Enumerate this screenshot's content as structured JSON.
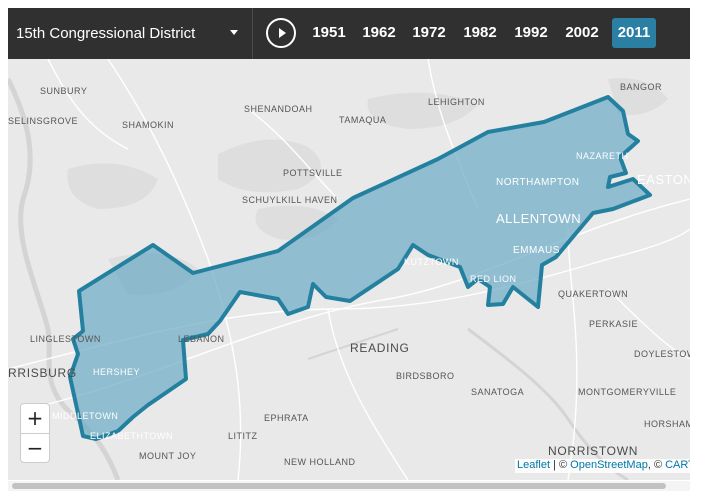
{
  "toolbar": {
    "district_label": "15th Congressional District",
    "years": [
      "1951",
      "1962",
      "1972",
      "1982",
      "1992",
      "2002",
      "2011"
    ],
    "active_year": "2011"
  },
  "colors": {
    "toolbar_bg": "#303030",
    "active_year_bg": "#2a7fa3",
    "district_fill": "#6aaac4",
    "district_stroke": "#24809f",
    "map_bg": "#e9e9e9"
  },
  "map": {
    "places": {
      "sunbury": "SUNBURY",
      "selinsgrove": "SELINSGROVE",
      "shenandoah": "SHENANDOAH",
      "lehighton": "LEHIGHTON",
      "bangor": "BANGOR",
      "shamokin": "SHAMOKIN",
      "tamaqua": "TAMAQUA",
      "nazareth": "NAZARETH",
      "pottsville": "POTTSVILLE",
      "northampton": "NORTHAMPTON",
      "easton": "EASTON",
      "schuylkill_haven": "SCHUYLKILL HAVEN",
      "allentown": "ALLENTOWN",
      "emmaus": "EMMAUS",
      "kutztown": "KUTZTOWN",
      "red_lion": "RED LION",
      "quakertown": "QUAKERTOWN",
      "perkasie": "PERKASIE",
      "linglestown": "LINGLESTOWN",
      "lebanon": "LEBANON",
      "reading": "READING",
      "doylestown": "DOYLESTOWN",
      "harrisburg": "RRISBURG",
      "hershey": "HERSHEY",
      "birdsboro": "BIRDSBORO",
      "sanatoga": "SANATOGA",
      "montgomeryville": "MONTGOMERYVILLE",
      "middletown": "MIDDLETOWN",
      "ephrata": "EPHRATA",
      "horsham": "HORSHAM",
      "elizabethtown": "ELIZABETHTOWN",
      "lititz": "LITITZ",
      "mount_joy": "MOUNT JOY",
      "new_holland": "NEW HOLLAND",
      "norristown": "NORRISTOWN"
    },
    "zoom_in": "+",
    "zoom_out": "−"
  },
  "attribution": {
    "leaflet": "Leaflet",
    "sep1": " | © ",
    "osm": "OpenStreetMap",
    "sep2": ", © ",
    "carto": "CARTO"
  }
}
